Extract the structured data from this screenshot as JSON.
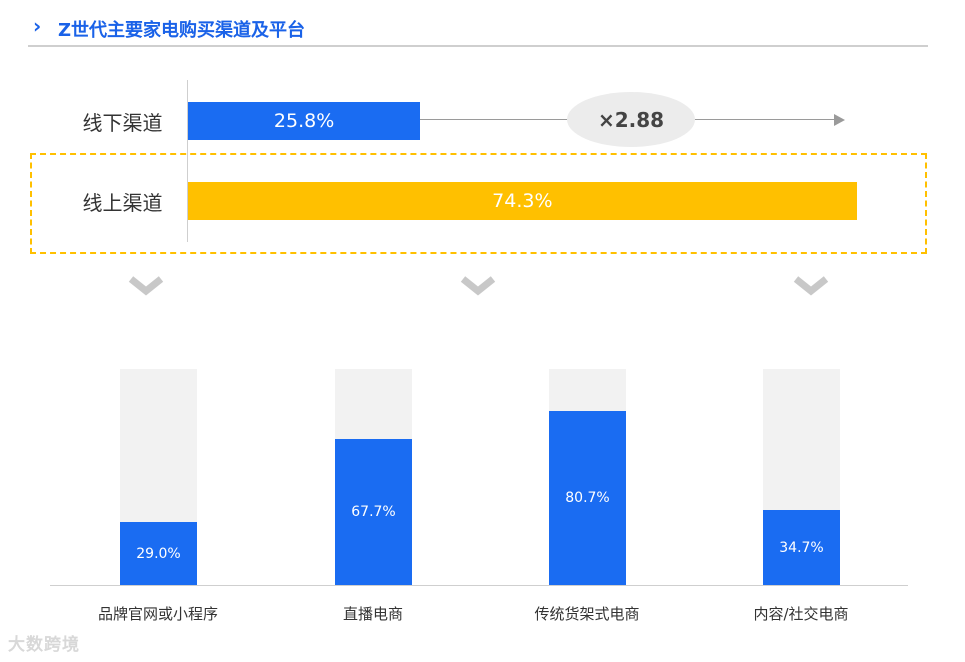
{
  "header": {
    "arrow": "›",
    "title": "Z世代主要家电购买渠道及平台"
  },
  "colors": {
    "accent_blue": "#1a6cf2",
    "accent_yellow": "#ffc000",
    "title_blue": "#1a62e8",
    "track_gray": "#f2f2f2"
  },
  "chart_data": [
    {
      "type": "bar",
      "orientation": "horizontal",
      "categories": [
        "线下渠道",
        "线上渠道"
      ],
      "values": [
        25.8,
        74.3
      ],
      "value_labels": [
        "25.8%",
        "74.3%"
      ],
      "unit": "%",
      "xlim": [
        0,
        100
      ],
      "annotation": "×2.88",
      "highlighted_category": "线上渠道"
    },
    {
      "type": "bar",
      "orientation": "vertical",
      "categories": [
        "品牌官网或小程序",
        "直播电商",
        "传统货架式电商",
        "内容/社交电商"
      ],
      "values": [
        29.0,
        67.7,
        80.7,
        34.7
      ],
      "value_labels": [
        "29.0%",
        "67.7%",
        "80.7%",
        "34.7%"
      ],
      "unit": "%",
      "ylim": [
        0,
        100
      ]
    }
  ],
  "watermark": "大数跨境"
}
